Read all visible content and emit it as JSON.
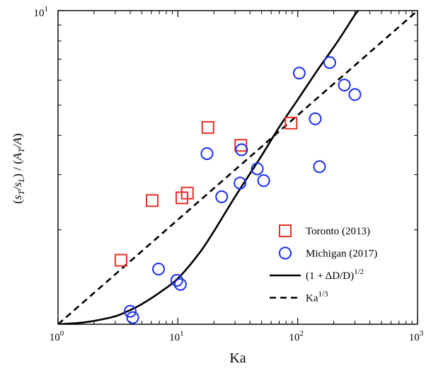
{
  "chart_data": {
    "type": "scatter",
    "x_scale": "log",
    "y_scale": "log",
    "xlim": [
      1,
      1000
    ],
    "ylim": [
      1,
      10
    ],
    "xlabel": "Ka",
    "ylabel": "(s_T/s_L)/(A_T/A)",
    "x_ticks": [
      {
        "value": 1,
        "base": "10",
        "exp": "0"
      },
      {
        "value": 10,
        "base": "10",
        "exp": "1"
      },
      {
        "value": 100,
        "base": "10",
        "exp": "2"
      },
      {
        "value": 1000,
        "base": "10",
        "exp": "3"
      }
    ],
    "y_ticks": [
      {
        "value": 10,
        "base": "10",
        "exp": "1"
      }
    ],
    "y_minor_ticks": [
      2,
      3,
      4,
      5,
      6,
      7,
      8,
      9
    ],
    "grid": false,
    "legend_position": "bottom-right",
    "series": [
      {
        "name": "Toronto (2013)",
        "kind": "scatter",
        "marker": "square",
        "color": "#e8312a",
        "points": [
          [
            3.35,
            1.6
          ],
          [
            6.1,
            2.48
          ],
          [
            10.8,
            2.53
          ],
          [
            12.0,
            2.62
          ],
          [
            17.8,
            4.24
          ],
          [
            33.5,
            3.72
          ],
          [
            88.0,
            4.38
          ]
        ]
      },
      {
        "name": "Michigan (2017)",
        "kind": "scatter",
        "marker": "circle",
        "color": "#1a2ef0",
        "points": [
          [
            4.0,
            1.1
          ],
          [
            4.2,
            1.05
          ],
          [
            6.9,
            1.5
          ],
          [
            9.8,
            1.38
          ],
          [
            10.5,
            1.34
          ],
          [
            17.5,
            3.5
          ],
          [
            23.2,
            2.55
          ],
          [
            33.0,
            2.82
          ],
          [
            34.0,
            3.6
          ],
          [
            46.0,
            3.13
          ],
          [
            52.0,
            2.87
          ],
          [
            103.0,
            6.32
          ],
          [
            140.0,
            4.52
          ],
          [
            152.0,
            3.18
          ],
          [
            185.0,
            6.83
          ],
          [
            245.0,
            5.79
          ],
          [
            300.0,
            5.4
          ]
        ]
      },
      {
        "name": "(1 + ΔD/D)^(1/2)",
        "kind": "line",
        "style": "solid",
        "color": "#000000",
        "points": [
          [
            1.0,
            1.0
          ],
          [
            1.5,
            1.01
          ],
          [
            2,
            1.025
          ],
          [
            3,
            1.06
          ],
          [
            4,
            1.11
          ],
          [
            5,
            1.16
          ],
          [
            7,
            1.26
          ],
          [
            10,
            1.4
          ],
          [
            15,
            1.68
          ],
          [
            20,
            1.98
          ],
          [
            30,
            2.55
          ],
          [
            50,
            3.45
          ],
          [
            70,
            4.25
          ],
          [
            100,
            5.2
          ],
          [
            150,
            6.55
          ],
          [
            200,
            7.65
          ],
          [
            250,
            8.7
          ],
          [
            300,
            9.7
          ],
          [
            320,
            10.0
          ]
        ]
      },
      {
        "name": "Ka^(1/3)",
        "kind": "line",
        "style": "dashed",
        "color": "#000000",
        "function": "power",
        "exponent": 0.3333,
        "domain": [
          1,
          1000
        ]
      }
    ]
  },
  "legend": {
    "items": [
      {
        "label": "Toronto (2013)",
        "marker": "square",
        "color": "#e8312a"
      },
      {
        "label": "Michigan (2017)",
        "marker": "circle",
        "color": "#1a2ef0"
      },
      {
        "label": "(1 + ΔD/D)",
        "sup": "1/2",
        "line": "solid",
        "color": "#000000"
      },
      {
        "label": "Ka",
        "sup": "1/3",
        "line": "dashed",
        "color": "#000000"
      }
    ]
  }
}
